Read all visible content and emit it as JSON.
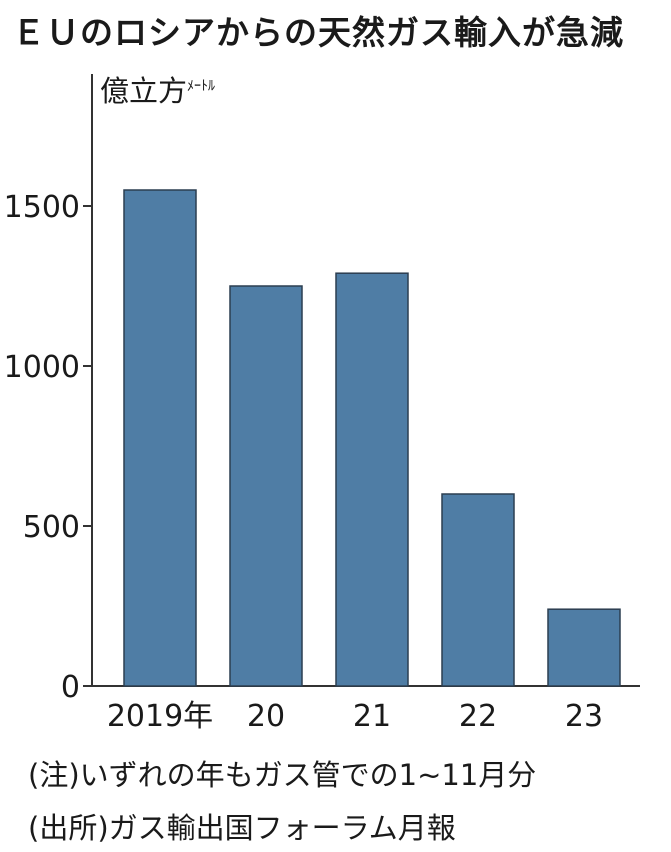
{
  "title": "ＥＵのロシアからの天然ガス輸入が急減",
  "unit": {
    "main": "億立方",
    "sub": "ﾒｰﾄﾙ"
  },
  "notes": [
    "(注)いずれの年もガス管での1~11月分",
    "(出所)ガス輸出国フォーラム月報"
  ],
  "colors": {
    "bar": "#4f7da5",
    "bar_edge": "#2c3e50",
    "axis": "#333333"
  },
  "chart_data": {
    "type": "bar",
    "title": "ＥＵのロシアからの天然ガス輸入が急減",
    "ylabel": "億立方ﾒｰﾄﾙ",
    "categories": [
      "2019年",
      "20",
      "21",
      "22",
      "23"
    ],
    "values": [
      1550,
      1250,
      1290,
      600,
      240
    ],
    "yticks": [
      0,
      500,
      1000,
      1500
    ],
    "ylim": [
      0,
      1850
    ],
    "grid": false,
    "legend": "none"
  }
}
